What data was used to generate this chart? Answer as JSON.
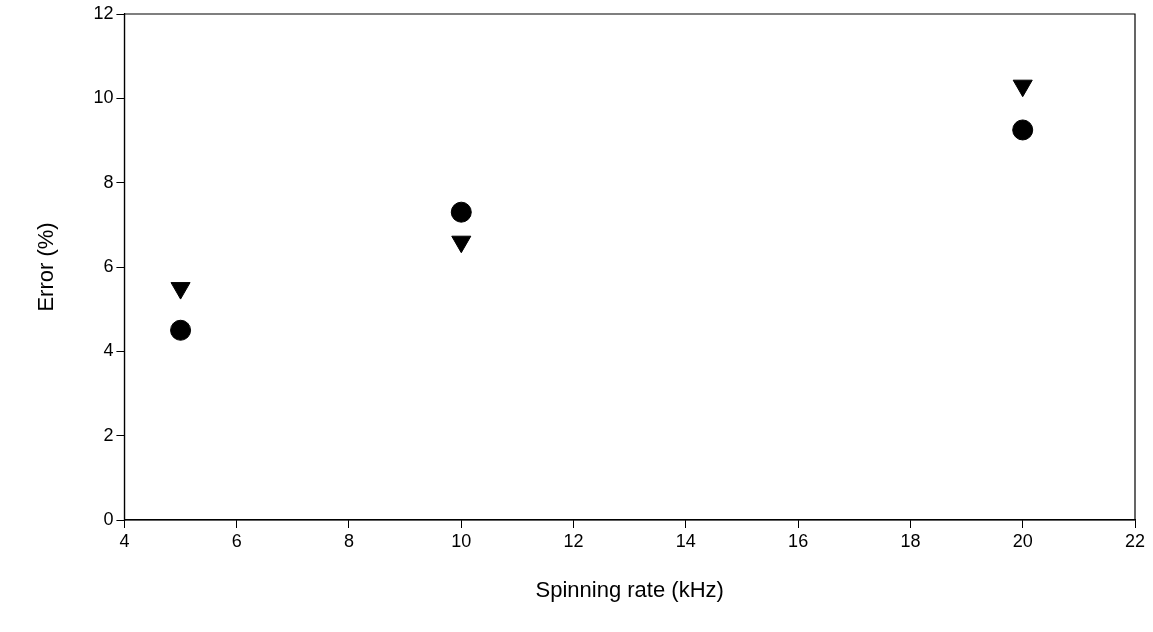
{
  "chart_data": {
    "type": "scatter",
    "xlabel": "Spinning rate (kHz)",
    "ylabel": "Error (%)",
    "x": [
      5,
      10,
      20
    ],
    "series": [
      {
        "color": "#000000",
        "marker": "circle",
        "values": [
          4.5,
          7.3,
          9.25
        ]
      },
      {
        "color": "#000000",
        "marker": "triangle",
        "values": [
          5.5,
          6.6,
          10.3
        ]
      }
    ],
    "xlim": [
      4,
      22
    ],
    "xticks": [
      4,
      6,
      8,
      10,
      12,
      14,
      16,
      18,
      20,
      22
    ],
    "ylim": [
      0,
      12
    ],
    "yticks": [
      0,
      2,
      4,
      6,
      8,
      10,
      12
    ],
    "grid": false,
    "legend": false
  }
}
